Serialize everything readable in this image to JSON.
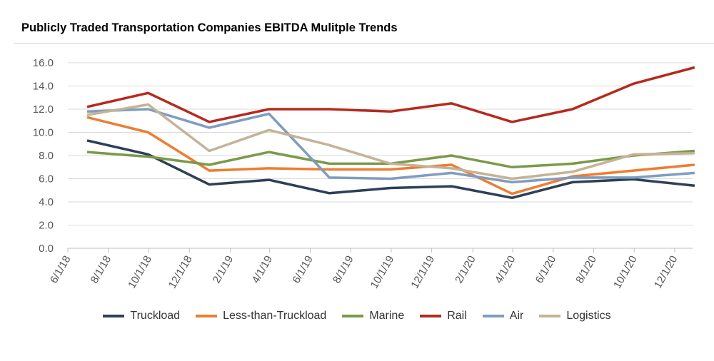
{
  "chart_data": {
    "type": "line",
    "title": "Publicly Traded Transportation Companies EBITDA Mulitple Trends",
    "xlabel": "",
    "ylabel": "",
    "ylim": [
      0,
      16
    ],
    "yticks": [
      "0.0",
      "2.0",
      "4.0",
      "6.0",
      "8.0",
      "10.0",
      "12.0",
      "14.0",
      "16.0"
    ],
    "xticks": [
      "6/1/18",
      "8/1/18",
      "10/1/18",
      "12/1/18",
      "2/1/19",
      "4/1/19",
      "6/1/19",
      "8/1/19",
      "10/1/19",
      "12/1/19",
      "2/1/20",
      "4/1/20",
      "6/1/20",
      "8/1/20",
      "10/1/20",
      "12/1/20"
    ],
    "grid": true,
    "legend_position": "bottom",
    "x": [
      "2018-06-30",
      "2018-09-30",
      "2018-12-31",
      "2019-03-31",
      "2019-06-30",
      "2019-09-30",
      "2019-12-31",
      "2020-03-31",
      "2020-06-30",
      "2020-09-30",
      "2020-12-31"
    ],
    "series": [
      {
        "name": "Truckload",
        "color": "#2e3f57",
        "values": [
          9.3,
          8.1,
          5.5,
          5.9,
          4.75,
          5.2,
          5.35,
          4.35,
          5.7,
          5.95,
          5.4
        ]
      },
      {
        "name": "Less-than-Truckload",
        "color": "#ed7d31",
        "values": [
          11.3,
          10.0,
          6.7,
          6.9,
          6.8,
          6.8,
          7.2,
          4.7,
          6.2,
          6.7,
          7.2
        ]
      },
      {
        "name": "Marine",
        "color": "#7a9a4a",
        "values": [
          8.3,
          7.9,
          7.2,
          8.3,
          7.3,
          7.3,
          8.0,
          7.0,
          7.3,
          8.0,
          8.4
        ]
      },
      {
        "name": "Rail",
        "color": "#b52a1e",
        "values": [
          12.2,
          13.4,
          10.9,
          12.0,
          12.0,
          11.8,
          12.5,
          10.9,
          12.0,
          14.2,
          15.6
        ]
      },
      {
        "name": "Air",
        "color": "#7f9cc0",
        "values": [
          11.8,
          12.0,
          10.4,
          11.6,
          6.1,
          6.0,
          6.5,
          5.7,
          6.1,
          6.1,
          6.5
        ]
      },
      {
        "name": "Logistics",
        "color": "#c4b396",
        "values": [
          11.5,
          12.4,
          8.4,
          10.2,
          8.9,
          7.3,
          6.9,
          6.0,
          6.6,
          8.1,
          8.2
        ]
      }
    ]
  }
}
